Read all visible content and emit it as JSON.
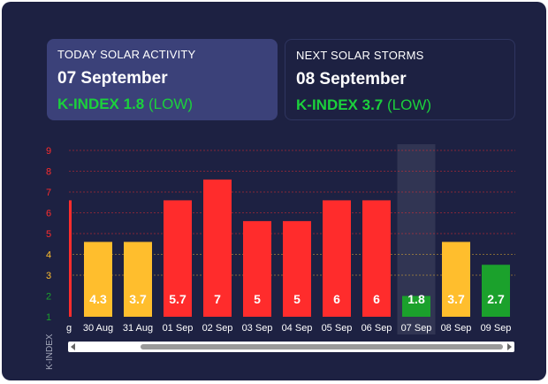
{
  "today_card": {
    "title": "TODAY SOLAR ACTIVITY",
    "date": "07 September",
    "k_label": "K-INDEX 1.8",
    "k_level": "(LOW)"
  },
  "next_card": {
    "title": "NEXT SOLAR STORMS",
    "date": "08 September",
    "k_label": "K-INDEX 3.7",
    "k_level": "(LOW)"
  },
  "colors": {
    "storm": "#ff2c2c",
    "active": "#ffbe2d",
    "quiet": "#1ba12c",
    "panel": "#1d2142",
    "highlight": "#ffffff"
  },
  "chart_data": {
    "type": "bar",
    "ylabel": "K-INDEX",
    "ylim": [
      1,
      9
    ],
    "yticks": [
      "1",
      "2",
      "3",
      "4",
      "5",
      "6",
      "7",
      "8",
      "9"
    ],
    "partial_first_category": "g",
    "partial_first_value": 6.6,
    "categories": [
      "30 Aug",
      "31 Aug",
      "01 Sep",
      "02 Sep",
      "03 Sep",
      "04 Sep",
      "05 Sep",
      "06 Sep",
      "07 Sep",
      "08 Sep",
      "09 Sep"
    ],
    "values": [
      4.3,
      3.7,
      5.7,
      7,
      5,
      5,
      6,
      6,
      1.8,
      3.7,
      2.7
    ],
    "bar_heights": [
      4.6,
      4.6,
      6.6,
      7.6,
      5.6,
      5.6,
      6.6,
      6.6,
      2,
      4.6,
      3.5
    ],
    "highlight_category": "07 Sep",
    "grid": true
  },
  "scrollbar": {
    "left_arrow": "left-arrow-icon",
    "right_arrow": "right-arrow-icon"
  }
}
